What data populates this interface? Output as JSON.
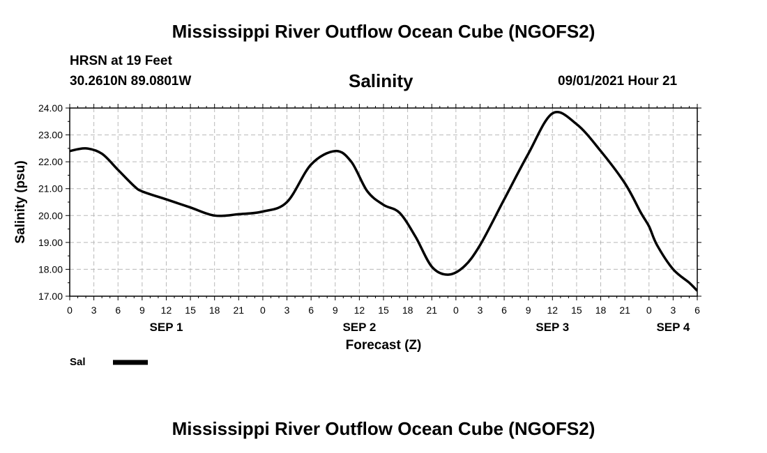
{
  "page": {
    "title_top": "Mississippi River Outflow Ocean Cube (NGOFS2)",
    "title_bottom": "Mississippi River Outflow Ocean Cube (NGOFS2)",
    "station": "HRSN at 19 Feet",
    "coords": "30.2610N  89.0801W",
    "subtitle": "Salinity",
    "datetime": "09/01/2021 Hour 21"
  },
  "chart_data": {
    "type": "line",
    "title": "Salinity",
    "xlabel": "Forecast (Z)",
    "ylabel": "Salinity (psu)",
    "ylim": [
      17,
      24
    ],
    "xlim_hours": [
      0,
      78
    ],
    "grid": true,
    "legend_position": "bottom-left",
    "y_ticks": [
      "17.00",
      "18.00",
      "19.00",
      "20.00",
      "21.00",
      "22.00",
      "23.00",
      "24.00"
    ],
    "x_tick_labels": [
      "0",
      "3",
      "6",
      "9",
      "12",
      "15",
      "18",
      "21",
      "0",
      "3",
      "6",
      "9",
      "12",
      "15",
      "18",
      "21",
      "0",
      "3",
      "6",
      "9",
      "12",
      "15",
      "18",
      "21",
      "0",
      "3",
      "6"
    ],
    "x_day_labels": [
      {
        "label": "SEP 1",
        "hour": 12
      },
      {
        "label": "SEP 2",
        "hour": 36
      },
      {
        "label": "SEP 3",
        "hour": 60
      },
      {
        "label": "SEP 4",
        "hour": 75
      }
    ],
    "series": [
      {
        "name": "Sal",
        "color": "#000000",
        "x": [
          0,
          2,
          4,
          6,
          8,
          9,
          12,
          15,
          18,
          21,
          24,
          27,
          30,
          33,
          35,
          37,
          39,
          41,
          43,
          45,
          47,
          49,
          51,
          54,
          57,
          60,
          63,
          66,
          69,
          71,
          72,
          73,
          75,
          77,
          78
        ],
        "values": [
          22.4,
          22.5,
          22.3,
          21.7,
          21.1,
          20.9,
          20.6,
          20.3,
          20.0,
          20.05,
          20.15,
          20.5,
          21.9,
          22.4,
          22.0,
          20.9,
          20.4,
          20.1,
          19.2,
          18.1,
          17.8,
          18.1,
          18.9,
          20.6,
          22.3,
          23.8,
          23.4,
          22.4,
          21.2,
          20.1,
          19.6,
          18.9,
          18.0,
          17.5,
          17.2
        ]
      }
    ]
  }
}
